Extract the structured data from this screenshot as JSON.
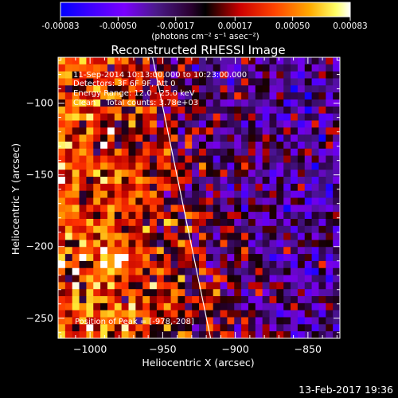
{
  "chart_data": {
    "type": "heatmap",
    "title": "Reconstructed RHESSI Image",
    "xlabel": "Heliocentric X (arcsec)",
    "ylabel": "Heliocentric Y (arcsec)",
    "xlim": [
      -1022,
      -828
    ],
    "ylim": [
      -264,
      -68
    ],
    "x_ticks": [
      -1000,
      -950,
      -900,
      -850
    ],
    "x_tick_labels": [
      "−1000",
      "−950",
      "−900",
      "−850"
    ],
    "y_ticks": [
      -100,
      -150,
      -200,
      -250
    ],
    "y_tick_labels": [
      "−100",
      "−150",
      "−200",
      "−250"
    ],
    "colorbar": {
      "range": [
        -0.00083,
        0.00083
      ],
      "tick_labels": [
        "-0.00083",
        "-0.00050",
        "-0.00017",
        "0.00017",
        "0.00050",
        "0.00083"
      ],
      "units": "(photons cm⁻² s⁻¹ asec⁻²)",
      "colormap": [
        "#0000ff",
        "#7a00ff",
        "#4b1a8a",
        "#2a0030",
        "#000000",
        "#ff0000",
        "#ff8800",
        "#ffff00",
        "#ffffff"
      ]
    },
    "annotations": [
      "11-Sep-2014 10:13:00.000 to 10:23:00.000",
      "Detectors: 3F 6F 9F, Att 0",
      "Energy Range: 12.0 - 25.0 keV",
      "Clean    Total counts: 3.78e+03",
      "Position of Peak = [-978,-208]"
    ],
    "limb_line": [
      [
        -957,
        -68
      ],
      [
        -917,
        -264
      ]
    ],
    "peak": [
      -978,
      -208
    ],
    "grid": false
  },
  "footer": {
    "timestamp": "13-Feb-2017 19:36"
  }
}
